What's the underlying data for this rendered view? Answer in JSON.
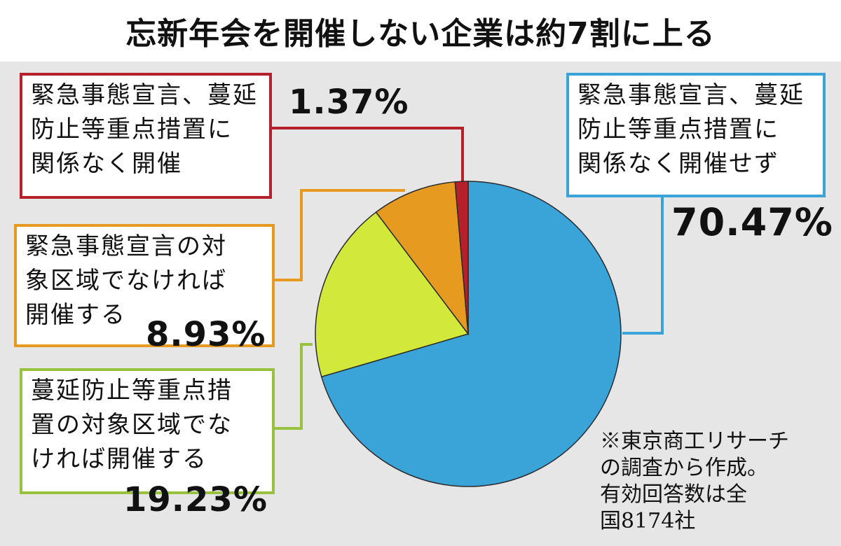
{
  "title": "忘新年会を開催しない企業は約7割に上る",
  "colors": {
    "not_held": "#3aa3d8",
    "held_regardless": "#b5202b",
    "held_if_not_emergency": "#e69a1f",
    "held_if_not_priority": "#d2e83a",
    "background": "#e6e6e6"
  },
  "chart_data": {
    "type": "pie",
    "title": "忘新年会を開催しない企業は約7割に上る",
    "start": "12 o'clock, clockwise",
    "slices": [
      {
        "key": "not_held",
        "label_lines": [
          "緊急事態宣言、蔓延",
          "防止等重点措置に",
          "関係なく開催せず"
        ],
        "value": 70.47,
        "value_label": "70.47%",
        "color": "#3aa3d8"
      },
      {
        "key": "held_if_not_priority",
        "label_lines": [
          "蔓延防止等重点措",
          "置の対象区域でな",
          "ければ開催する"
        ],
        "value": 19.23,
        "value_label": "19.23%",
        "color": "#d2e83a"
      },
      {
        "key": "held_if_not_emergency",
        "label_lines": [
          "緊急事態宣言の対",
          "象区域でなければ",
          "開催する"
        ],
        "value": 8.93,
        "value_label": "8.93%",
        "color": "#e69a1f"
      },
      {
        "key": "held_regardless",
        "label_lines": [
          "緊急事態宣言、蔓延",
          "防止等重点措置に",
          "関係なく開催"
        ],
        "value": 1.37,
        "value_label": "1.37%",
        "color": "#b5202b"
      }
    ]
  },
  "note_lines": [
    "※東京商工リサーチ",
    "の調査から作成。",
    "有効回答数は全",
    "国8174社"
  ]
}
